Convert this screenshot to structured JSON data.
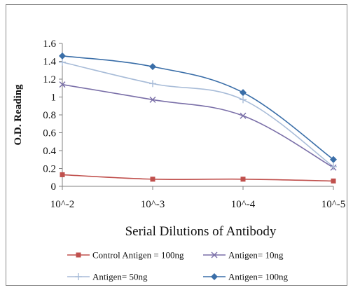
{
  "chart_data": {
    "type": "line",
    "title": "",
    "xlabel": "Serial Dilutions  of Antibody",
    "ylabel": "O.D. Reading",
    "categories": [
      "10^-2",
      "10^-3",
      "10^-4",
      "10^-5"
    ],
    "ylim": [
      0,
      1.6
    ],
    "yticks": [
      "0",
      "0.2",
      "0.4",
      "0.6",
      "0.8",
      "1",
      "1.2",
      "1.4",
      "1.6"
    ],
    "legend_position": "bottom",
    "grid": false,
    "series": [
      {
        "name": "Control Antigen = 100ng",
        "values": [
          0.13,
          0.08,
          0.08,
          0.06
        ],
        "color": "#c0504d",
        "marker": "square"
      },
      {
        "name": "Antigen= 10ng",
        "values": [
          1.14,
          0.97,
          0.79,
          0.21
        ],
        "color": "#7a6fa8",
        "marker": "x"
      },
      {
        "name": "Antigen= 50ng",
        "values": [
          1.39,
          1.15,
          0.97,
          0.22
        ],
        "color": "#a8bcd8",
        "marker": "plus"
      },
      {
        "name": "Antigen= 100ng",
        "values": [
          1.46,
          1.34,
          1.05,
          0.3
        ],
        "color": "#3a6ea8",
        "marker": "diamond"
      }
    ]
  }
}
